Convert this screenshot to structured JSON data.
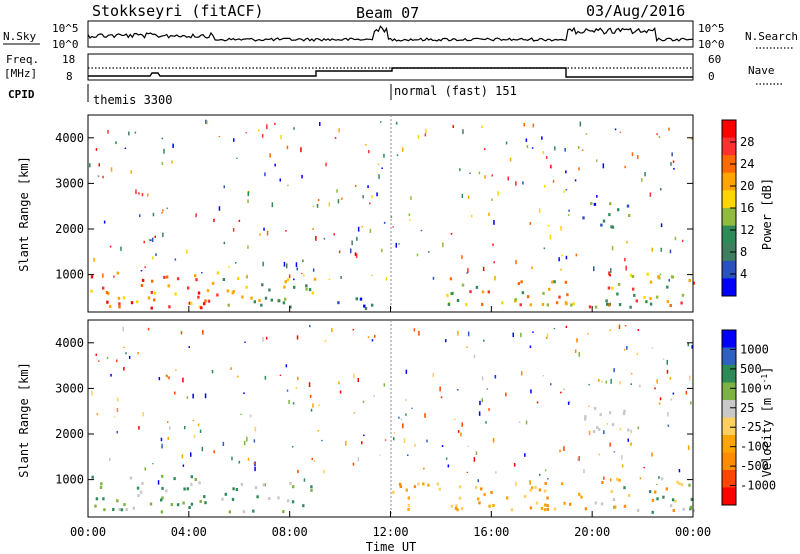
{
  "header": {
    "station": "Stokkseyri (fitACF)",
    "beam": "Beam 07",
    "date": "03/Aug/2016"
  },
  "top_panels": {
    "nsky_label": "N.Sky",
    "nsky_ticks": [
      "10^5",
      "10^0"
    ],
    "nsearch_label": "N.Search",
    "nsearch_ticks": [
      "10^5",
      "10^0"
    ],
    "freq_label_1": "Freq.",
    "freq_label_2": "[MHz]",
    "freq_ticks": [
      "18",
      "8"
    ],
    "nave_label": "Nave",
    "nave_ticks": [
      "60",
      "0"
    ],
    "cpid_label": "CPID",
    "cpid_segments": [
      {
        "label": "themis 3300",
        "start_h": 0,
        "end_h": 12
      },
      {
        "label": "normal (fast) 151",
        "start_h": 12,
        "end_h": 24
      }
    ]
  },
  "colors": {
    "power_scale": [
      "#0000ff",
      "#2a52be",
      "#3f7f5f",
      "#2e8b57",
      "#8fbc3f",
      "#ffd700",
      "#ffa500",
      "#ff6a00",
      "#ff3030",
      "#ff0000"
    ],
    "velocity_scale": [
      "#ff0000",
      "#ff4500",
      "#ff8c00",
      "#ffa500",
      "#ffd060",
      "#c8c8c8",
      "#7cb342",
      "#2e8b57",
      "#3060c0",
      "#0000ff"
    ]
  },
  "chart_data": [
    {
      "type": "heatmap",
      "name": "power-panel",
      "xlabel": "",
      "ylabel": "Slant Range [km]",
      "xlim": [
        0,
        24
      ],
      "ylim": [
        180,
        4500
      ],
      "yticks": [
        "1000",
        "2000",
        "3000",
        "4000"
      ],
      "colorbar": {
        "label": "Power [dB]",
        "ticks": [
          "28",
          "24",
          "20",
          "16",
          "12",
          "8",
          "4"
        ],
        "range": [
          0,
          32
        ]
      },
      "features": [
        {
          "t0": 0.0,
          "t1": 5.3,
          "r0": 180,
          "r1": 1050,
          "level": "high"
        },
        {
          "t0": 5.3,
          "t1": 9.0,
          "r0": 180,
          "r1": 900,
          "level": "medium"
        },
        {
          "t0": 9.0,
          "t1": 12.0,
          "r0": 180,
          "r1": 450,
          "level": "low"
        },
        {
          "t0": 14.2,
          "t1": 19.8,
          "r0": 300,
          "r1": 900,
          "level": "medium-high"
        },
        {
          "t0": 19.8,
          "t1": 24.0,
          "r0": 250,
          "r1": 1000,
          "level": "medium-high"
        },
        {
          "t0": 19.5,
          "t1": 21.5,
          "r0": 2000,
          "r1": 2550,
          "level": "low-medium"
        }
      ]
    },
    {
      "type": "heatmap",
      "name": "velocity-panel",
      "xlabel": "Time UT",
      "ylabel": "Slant Range [km]",
      "xlim": [
        0,
        24
      ],
      "ylim": [
        180,
        4500
      ],
      "xticks": [
        "00:00",
        "04:00",
        "08:00",
        "12:00",
        "16:00",
        "20:00",
        "00:00"
      ],
      "yticks": [
        "1000",
        "2000",
        "3000",
        "4000"
      ],
      "colorbar": {
        "label": "Velocity [m s^-1]",
        "ticks": [
          "1000",
          "500",
          "100",
          "25",
          "-25",
          "-100",
          "-500",
          "-1000"
        ],
        "range": [
          -1000,
          1000
        ]
      },
      "features": [
        {
          "t0": 0.0,
          "t1": 5.3,
          "r0": 180,
          "r1": 1050,
          "level": "mixed-gray-green"
        },
        {
          "t0": 5.3,
          "t1": 9.0,
          "r0": 180,
          "r1": 900,
          "level": "mixed-gray-green"
        },
        {
          "t0": 12.0,
          "t1": 19.8,
          "r0": 300,
          "r1": 900,
          "level": "negative-orange"
        },
        {
          "t0": 19.8,
          "t1": 24.0,
          "r0": 250,
          "r1": 1000,
          "level": "mixed"
        },
        {
          "t0": 19.5,
          "t1": 21.5,
          "r0": 2000,
          "r1": 2550,
          "level": "near-zero"
        }
      ]
    }
  ]
}
